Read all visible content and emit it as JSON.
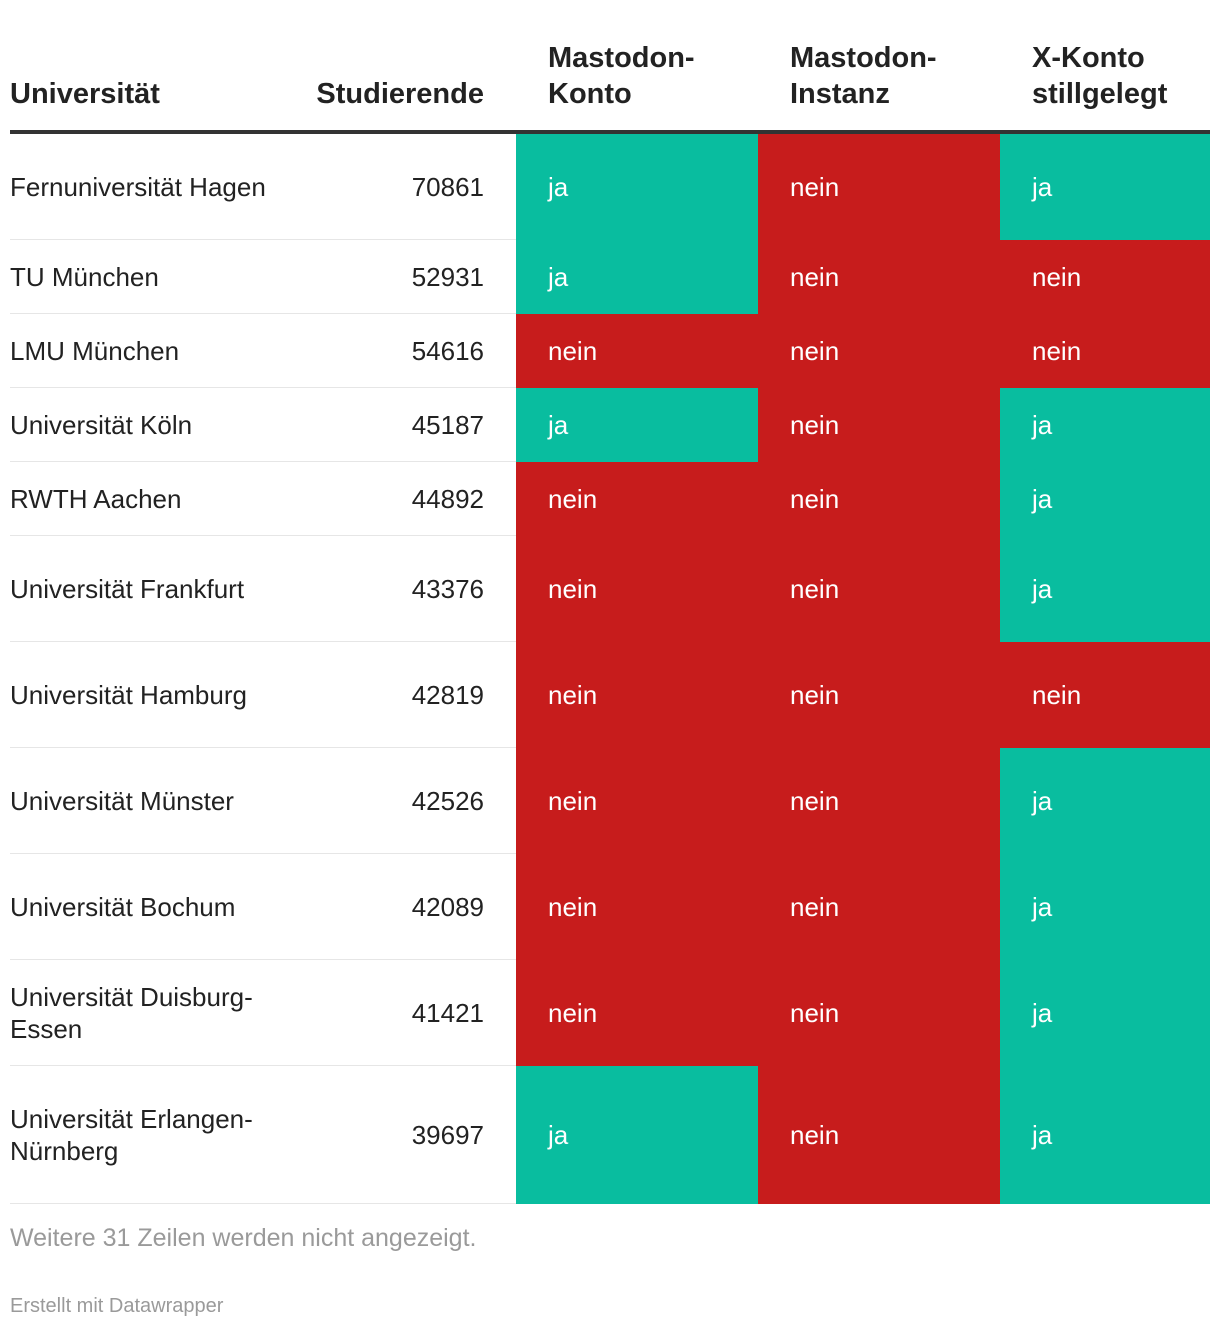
{
  "colors": {
    "ja": "#09bd9f",
    "nein": "#c71c1c"
  },
  "chart_data": {
    "type": "table",
    "columns": [
      "Universität",
      "Studierende",
      "Mastodon-Konto",
      "Mastodon-Instanz",
      "X-Konto stillgelegt"
    ],
    "rows": [
      {
        "universitaet": "Fernuniversität Hagen",
        "studierende": 70861,
        "mastodon_konto": "ja",
        "mastodon_instanz": "nein",
        "x_konto": "ja"
      },
      {
        "universitaet": "TU München",
        "studierende": 52931,
        "mastodon_konto": "ja",
        "mastodon_instanz": "nein",
        "x_konto": "nein"
      },
      {
        "universitaet": "LMU München",
        "studierende": 54616,
        "mastodon_konto": "nein",
        "mastodon_instanz": "nein",
        "x_konto": "nein"
      },
      {
        "universitaet": "Universität Köln",
        "studierende": 45187,
        "mastodon_konto": "ja",
        "mastodon_instanz": "nein",
        "x_konto": "ja"
      },
      {
        "universitaet": "RWTH Aachen",
        "studierende": 44892,
        "mastodon_konto": "nein",
        "mastodon_instanz": "nein",
        "x_konto": "ja"
      },
      {
        "universitaet": "Universität Frankfurt",
        "studierende": 43376,
        "mastodon_konto": "nein",
        "mastodon_instanz": "nein",
        "x_konto": "ja"
      },
      {
        "universitaet": "Universität Hamburg",
        "studierende": 42819,
        "mastodon_konto": "nein",
        "mastodon_instanz": "nein",
        "x_konto": "nein"
      },
      {
        "universitaet": "Universität Münster",
        "studierende": 42526,
        "mastodon_konto": "nein",
        "mastodon_instanz": "nein",
        "x_konto": "ja"
      },
      {
        "universitaet": "Universität Bochum",
        "studierende": 42089,
        "mastodon_konto": "nein",
        "mastodon_instanz": "nein",
        "x_konto": "ja"
      },
      {
        "universitaet": "Universität Duisburg-Essen",
        "studierende": 41421,
        "mastodon_konto": "nein",
        "mastodon_instanz": "nein",
        "x_konto": "ja"
      },
      {
        "universitaet": "Universität Erlangen-Nürnberg",
        "studierende": 39697,
        "mastodon_konto": "ja",
        "mastodon_instanz": "nein",
        "x_konto": "ja"
      }
    ]
  },
  "footnote": "Weitere 31 Zeilen werden nicht angezeigt.",
  "credit": "Erstellt mit Datawrapper"
}
